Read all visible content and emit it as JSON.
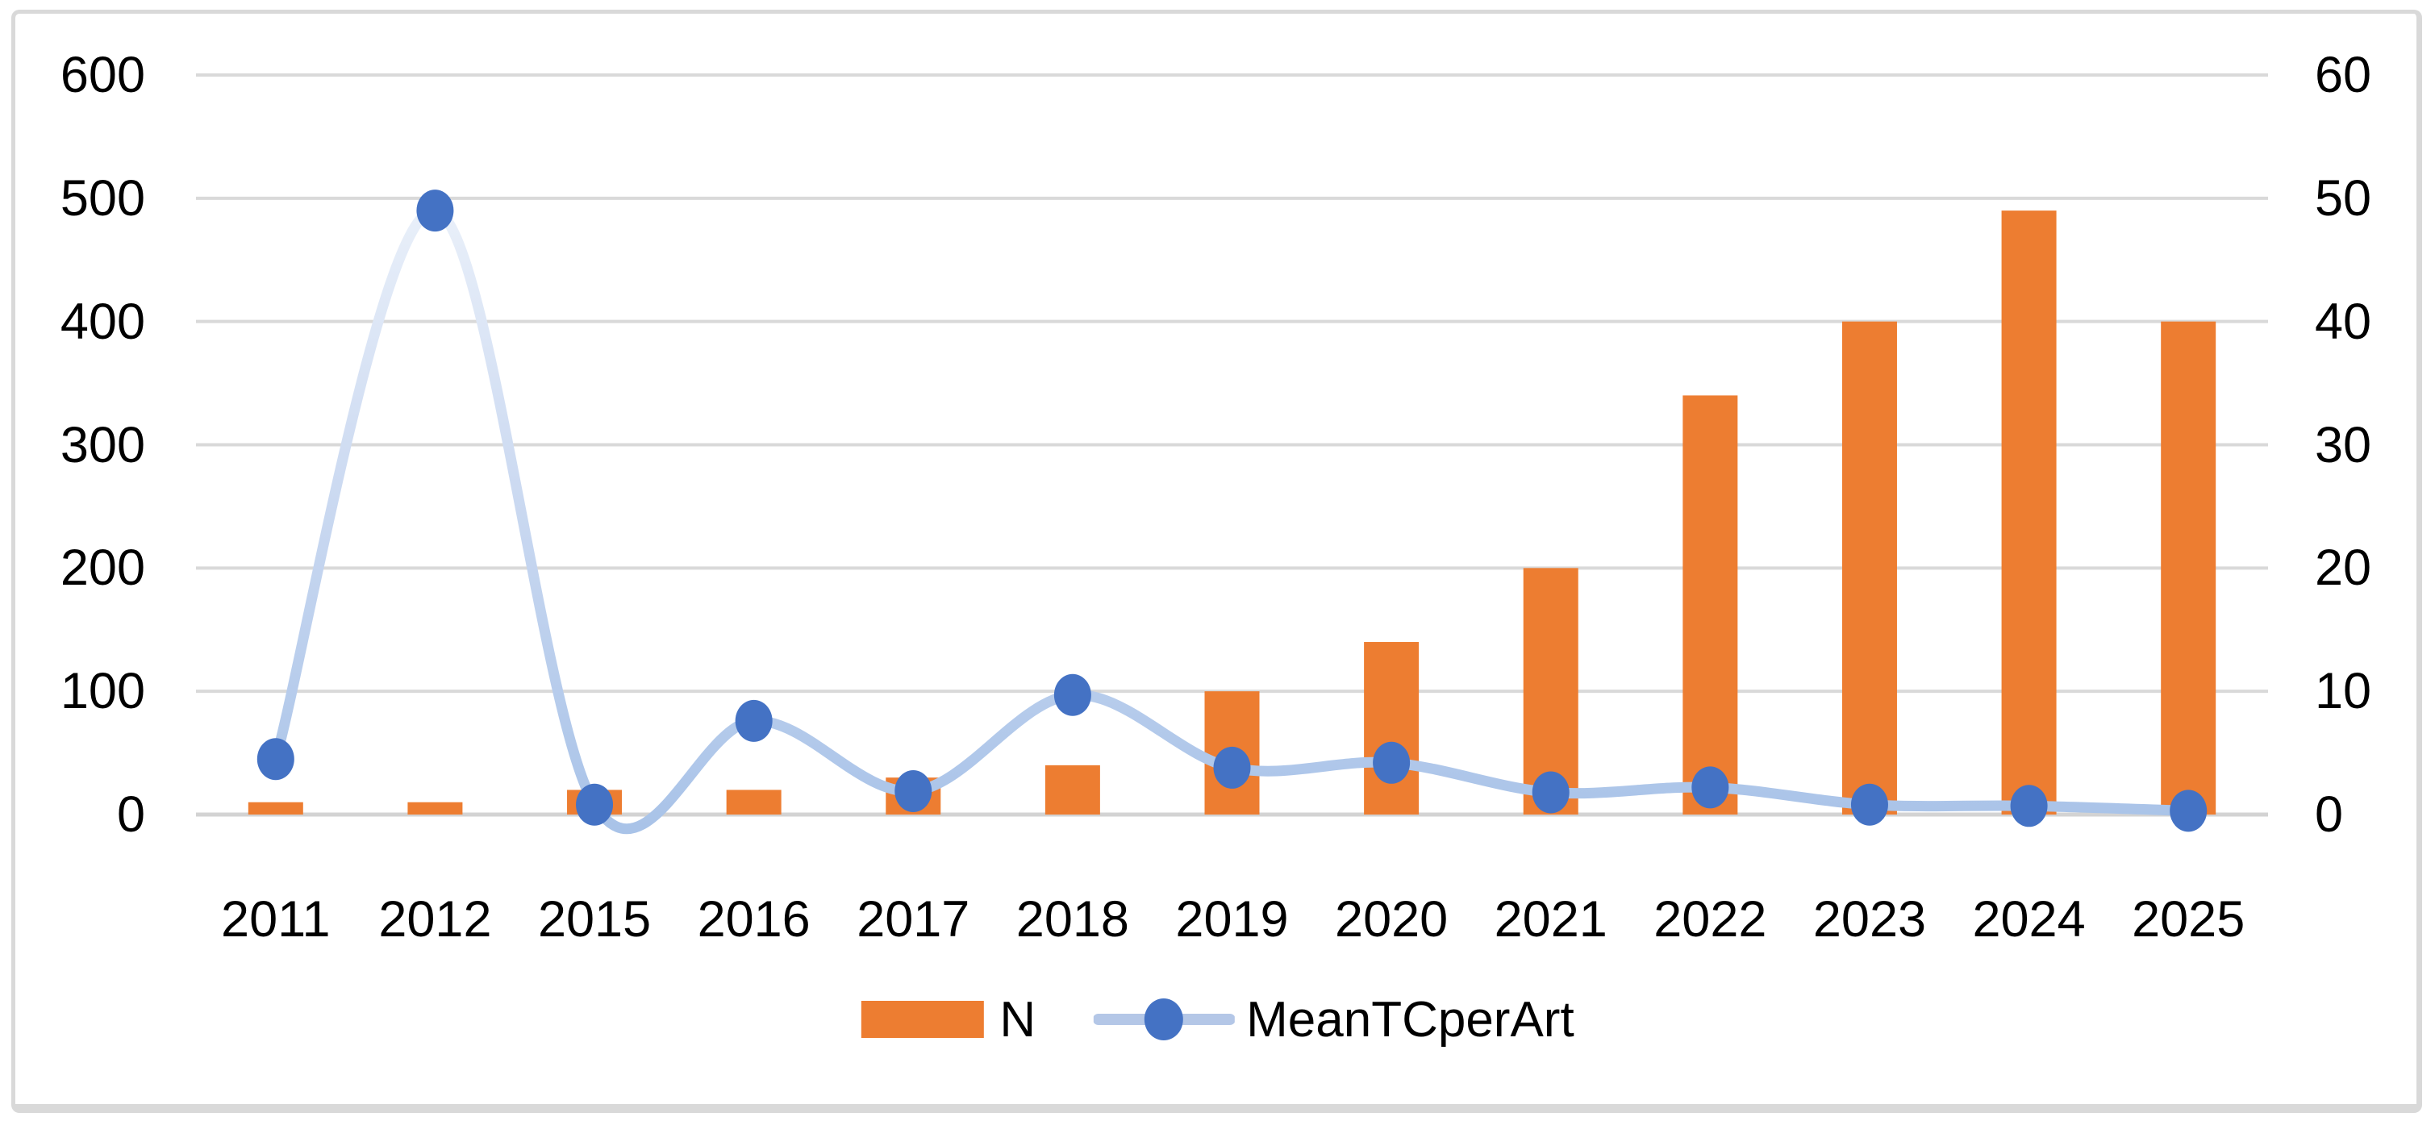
{
  "chart_data": {
    "type": "bar",
    "subtype": "combo-bar-line",
    "categories": [
      "2011",
      "2012",
      "2015",
      "2016",
      "2017",
      "2018",
      "2019",
      "2020",
      "2021",
      "2022",
      "2023",
      "2024",
      "2025"
    ],
    "series": [
      {
        "name": "N",
        "kind": "bar",
        "axis": "left",
        "color": "#ED7D31",
        "values": [
          10,
          10,
          20,
          20,
          30,
          40,
          100,
          140,
          200,
          340,
          400,
          490,
          400
        ]
      },
      {
        "name": "MeanTCperArt",
        "kind": "line",
        "axis": "right",
        "marker_color": "#4472C4",
        "line_color": "#B4C7E7",
        "line_gradient_top": "#EFF4FB",
        "line_gradient_bottom": "#A9C3E8",
        "values": [
          4.5,
          49,
          0.8,
          7.6,
          1.9,
          9.7,
          3.8,
          4.2,
          1.8,
          2.2,
          0.8,
          0.7,
          0.3
        ]
      }
    ],
    "left_axis": {
      "min": 0,
      "max": 600,
      "step": 100,
      "ticks": [
        "0",
        "100",
        "200",
        "300",
        "400",
        "500",
        "600"
      ]
    },
    "right_axis": {
      "min": 0,
      "max": 60,
      "step": 10,
      "ticks": [
        "0",
        "10",
        "20",
        "30",
        "40",
        "50",
        "60"
      ]
    },
    "title": "",
    "xlabel": "",
    "ylabel": "",
    "grid": true,
    "legend_position": "bottom",
    "colors": {
      "gridline": "#D9D9D9",
      "axis_line": "#D3D3D3",
      "frame_border": "#D9D9D9",
      "text": "#000000",
      "background": "#FFFFFF"
    }
  },
  "legend": {
    "items": [
      {
        "label": "N"
      },
      {
        "label": "MeanTCperArt"
      }
    ]
  }
}
